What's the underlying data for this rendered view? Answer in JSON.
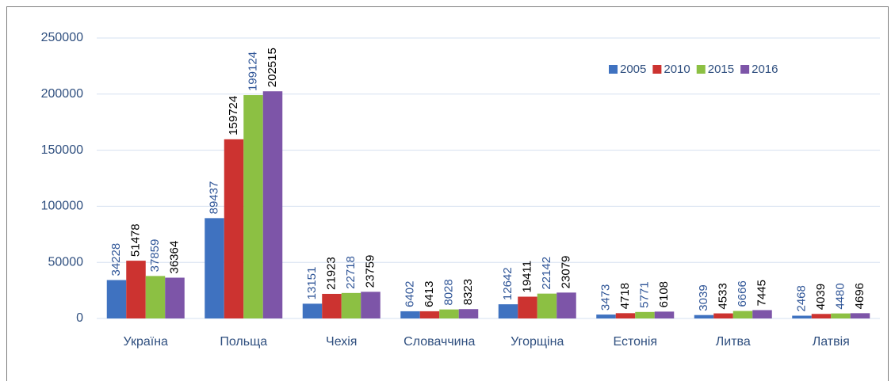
{
  "chart_data": {
    "type": "bar",
    "categories": [
      "Україна",
      "Польща",
      "Чехія",
      "Словаччина",
      "Угорщіна",
      "Естонія",
      "Литва",
      "Латвія"
    ],
    "series": [
      {
        "name": "2005",
        "color": "#3f72c0",
        "label_color": "#2f5597",
        "values": [
          34228,
          89437,
          13151,
          6402,
          12642,
          3473,
          3039,
          2468
        ]
      },
      {
        "name": "2010",
        "color": "#cc3330",
        "label_color": "#000000",
        "values": [
          51478,
          159724,
          21923,
          6413,
          19411,
          4718,
          4533,
          4039
        ]
      },
      {
        "name": "2015",
        "color": "#8cc043",
        "label_color": "#2f5597",
        "values": [
          37859,
          199124,
          22718,
          8028,
          22142,
          5771,
          6666,
          4480
        ]
      },
      {
        "name": "2016",
        "color": "#7d55a8",
        "label_color": "#000000",
        "values": [
          36364,
          202515,
          23759,
          8323,
          23079,
          6108,
          7445,
          4696
        ]
      }
    ],
    "ylim": [
      0,
      250000
    ],
    "yticks": [
      0,
      50000,
      100000,
      150000,
      200000,
      250000
    ],
    "grid": true,
    "legend": "top-right"
  }
}
